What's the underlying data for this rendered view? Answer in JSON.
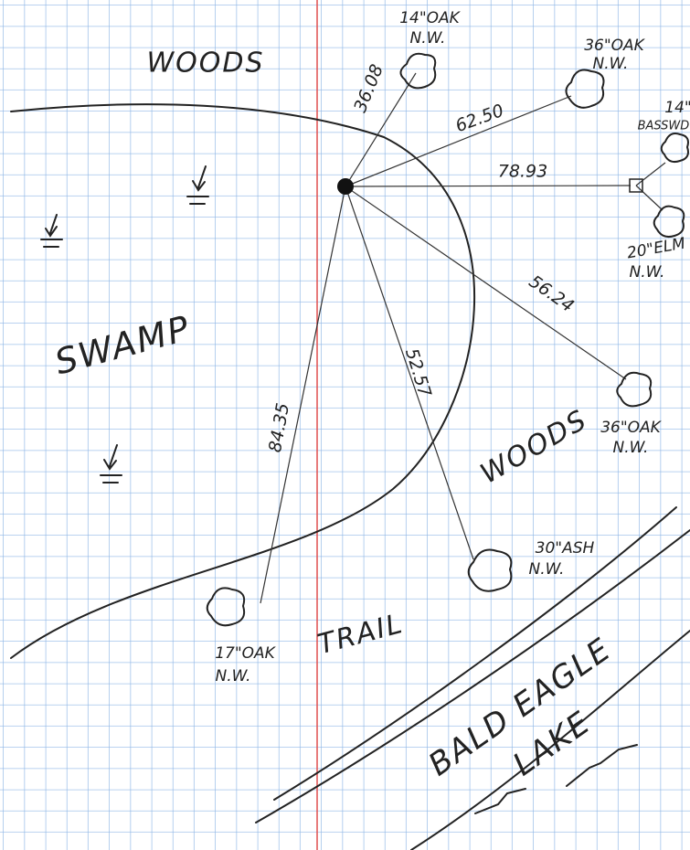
{
  "labels": {
    "woods_top": "WOODS",
    "swamp": "SWAMP",
    "woods_right": "WOODS",
    "trail": "TRAIL",
    "lake_line1": "BALD EAGLE",
    "lake_line2": "LAKE"
  },
  "trees": [
    {
      "size": "14\"OAK",
      "note": "N.W."
    },
    {
      "size": "36\"OAK",
      "note": "N.W."
    },
    {
      "size": "14\"",
      "note": "BASSWD."
    },
    {
      "size": "20\"ELM",
      "note": "N.W."
    },
    {
      "size": "36\"OAK",
      "note": "N.W."
    },
    {
      "size": "30\"ASH",
      "note": "N.W."
    },
    {
      "size": "17\"OAK",
      "note": "N.W."
    }
  ],
  "distances": [
    "36.08",
    "62.50",
    "78.93",
    "56.24",
    "52.57",
    "84.35"
  ]
}
